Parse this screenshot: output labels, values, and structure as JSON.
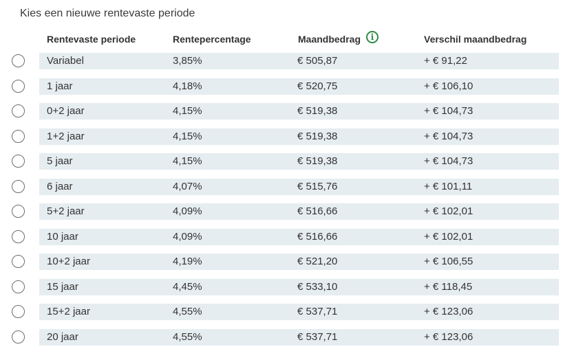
{
  "title": "Kies een nieuwe rentevaste periode",
  "icons": {
    "info": "info-icon",
    "info_glyph": "i"
  },
  "colors": {
    "row_band": "#e6edf0",
    "accent": "#2e8b45",
    "radio_border": "#6b6b6b"
  },
  "table": {
    "headers": {
      "periode": "Rentevaste periode",
      "rente": "Rentepercentage",
      "maand": "Maandbedrag",
      "verschil": "Verschil maandbedrag"
    },
    "rows": [
      {
        "periode": "Variabel",
        "rente": "3,85%",
        "maand": "€ 505,87",
        "verschil": "+ € 91,22"
      },
      {
        "periode": "1 jaar",
        "rente": "4,18%",
        "maand": "€ 520,75",
        "verschil": "+ € 106,10"
      },
      {
        "periode": "0+2 jaar",
        "rente": "4,15%",
        "maand": "€ 519,38",
        "verschil": "+ € 104,73"
      },
      {
        "periode": "1+2 jaar",
        "rente": "4,15%",
        "maand": "€ 519,38",
        "verschil": "+ € 104,73"
      },
      {
        "periode": "5 jaar",
        "rente": "4,15%",
        "maand": "€ 519,38",
        "verschil": "+ € 104,73"
      },
      {
        "periode": "6 jaar",
        "rente": "4,07%",
        "maand": "€ 515,76",
        "verschil": "+ € 101,11"
      },
      {
        "periode": "5+2 jaar",
        "rente": "4,09%",
        "maand": "€ 516,66",
        "verschil": "+ € 102,01"
      },
      {
        "periode": "10 jaar",
        "rente": "4,09%",
        "maand": "€ 516,66",
        "verschil": "+ € 102,01"
      },
      {
        "periode": "10+2 jaar",
        "rente": "4,19%",
        "maand": "€ 521,20",
        "verschil": "+ € 106,55"
      },
      {
        "periode": "15 jaar",
        "rente": "4,45%",
        "maand": "€ 533,10",
        "verschil": "+ € 118,45"
      },
      {
        "periode": "15+2 jaar",
        "rente": "4,55%",
        "maand": "€ 537,71",
        "verschil": "+ € 123,06"
      },
      {
        "periode": "20 jaar",
        "rente": "4,55%",
        "maand": "€ 537,71",
        "verschil": "+ € 123,06"
      }
    ]
  }
}
